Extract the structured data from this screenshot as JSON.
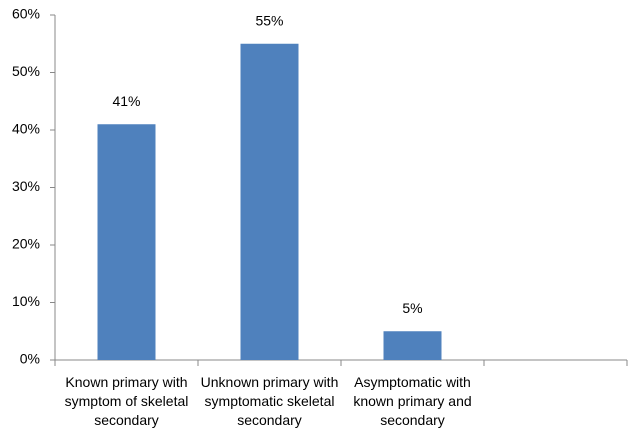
{
  "chart_data": {
    "type": "bar",
    "categories": [
      "Known primary with symptom of skeletal secondary",
      "Unknown primary with symptomatic skeletal secondary",
      "Asymptomatic with known primary and secondary",
      null
    ],
    "values": [
      41,
      55,
      5,
      null
    ],
    "value_labels": [
      "41%",
      "55%",
      "5%",
      null
    ],
    "color": "#4f81bd",
    "ylim": [
      0,
      60
    ],
    "yticks": [
      {
        "value": 0,
        "label": "0%"
      },
      {
        "value": 10,
        "label": "10%"
      },
      {
        "value": 20,
        "label": "20%"
      },
      {
        "value": 30,
        "label": "30%"
      },
      {
        "value": 40,
        "label": "40%"
      },
      {
        "value": 50,
        "label": "50%"
      },
      {
        "value": 60,
        "label": "60%"
      }
    ],
    "grid": false
  }
}
